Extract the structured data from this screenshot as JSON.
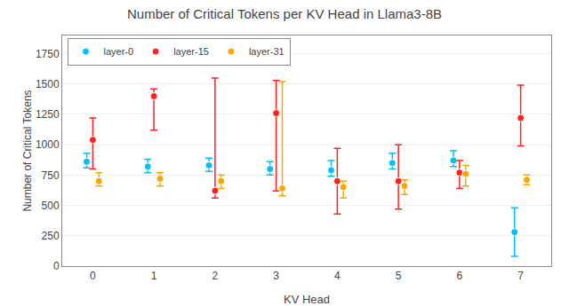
{
  "chart_data": {
    "type": "errorbar",
    "title": "Number of Critical Tokens per KV Head in Llama3-8B",
    "xlabel": "KV Head",
    "ylabel": "Number of Critical Tokens",
    "x": [
      0,
      1,
      2,
      3,
      4,
      5,
      6,
      7
    ],
    "series": [
      {
        "name": "layer-0",
        "color": "#00BFFF",
        "marker": "circle",
        "values": [
          860,
          820,
          830,
          800,
          790,
          850,
          870,
          280
        ],
        "error_low": [
          50,
          50,
          50,
          50,
          50,
          50,
          50,
          200
        ],
        "error_high": [
          70,
          60,
          60,
          60,
          80,
          80,
          80,
          200
        ]
      },
      {
        "name": "layer-15",
        "color": "#FF2020",
        "marker": "circle",
        "values": [
          1040,
          1400,
          620,
          1260,
          700,
          700,
          770,
          1220
        ],
        "error_low": [
          240,
          280,
          60,
          640,
          270,
          230,
          130,
          230
        ],
        "error_high": [
          180,
          60,
          930,
          270,
          270,
          300,
          100,
          270
        ]
      },
      {
        "name": "layer-31",
        "color": "#FFA500",
        "marker": "circle",
        "values": [
          700,
          720,
          700,
          640,
          650,
          660,
          760,
          710
        ],
        "error_low": [
          40,
          60,
          60,
          60,
          90,
          70,
          100,
          40
        ],
        "error_high": [
          70,
          50,
          50,
          880,
          50,
          50,
          70,
          40
        ]
      }
    ],
    "xlim": [
      -0.5,
      7.5
    ],
    "xticks": [
      0,
      1,
      2,
      3,
      4,
      5,
      6,
      7
    ],
    "ylim": [
      0,
      1900
    ],
    "yticks": [
      0,
      250,
      500,
      750,
      1000,
      1250,
      1500,
      1750
    ],
    "grid": "y",
    "legend": "upper left"
  }
}
